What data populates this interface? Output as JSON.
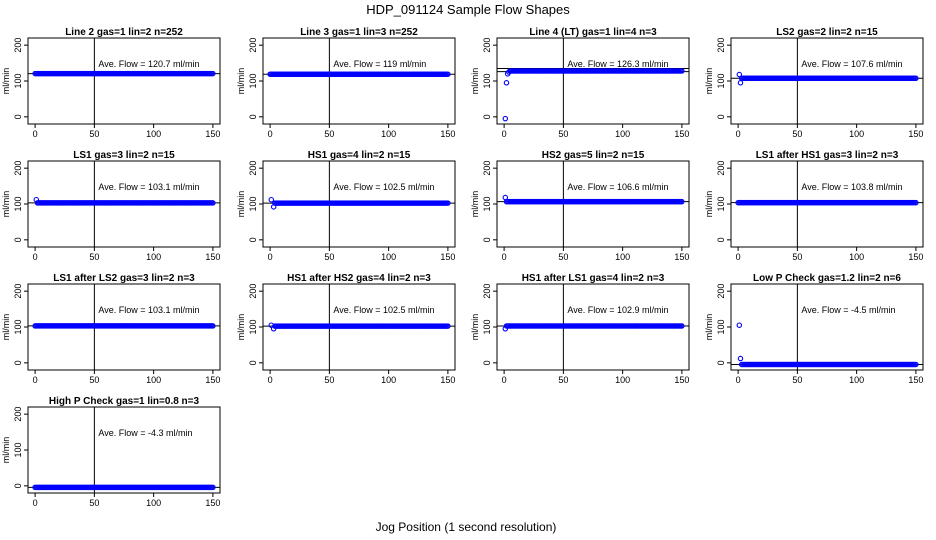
{
  "figure": {
    "title": "HDP_091124  Sample Flow Shapes",
    "xlabel": "Jog Position (1 second resolution)"
  },
  "colors": {
    "points": "#0000ff",
    "axes": "#000000"
  },
  "chart_data": [
    {
      "type": "scatter",
      "title": "Line 2 gas=1 lin=2 n=252",
      "ylabel": "ml/min",
      "xlim": [
        0,
        150
      ],
      "ylim": [
        -20,
        220
      ],
      "xticks": [
        "0",
        "50",
        "100",
        "150"
      ],
      "yticks": [
        "0",
        "100",
        "200"
      ],
      "vline": 50,
      "hline": 120.7,
      "annotation": "Ave. Flow =  120.7  ml/min",
      "start": [],
      "level": 120.7
    },
    {
      "type": "scatter",
      "title": "Line 3 gas=1 lin=3 n=252",
      "ylabel": "ml/min",
      "xlim": [
        0,
        150
      ],
      "ylim": [
        -20,
        220
      ],
      "xticks": [
        "0",
        "50",
        "100",
        "150"
      ],
      "yticks": [
        "0",
        "100",
        "200"
      ],
      "vline": 50,
      "hline": 119,
      "annotation": "Ave. Flow =  119  ml/min",
      "start": [],
      "level": 119
    },
    {
      "type": "scatter",
      "title": "Line 4 (LT) gas=1 lin=4 n=3",
      "ylabel": "ml/min",
      "xlim": [
        0,
        150
      ],
      "ylim": [
        -20,
        220
      ],
      "xticks": [
        "0",
        "50",
        "100",
        "150"
      ],
      "yticks": [
        "0",
        "100",
        "200"
      ],
      "vline": 50,
      "hline": 126.3,
      "hline2": 135,
      "annotation": "Ave. Flow =  126.3  ml/min",
      "start": [
        [
          1,
          -5
        ],
        [
          2,
          95
        ],
        [
          3,
          120
        ],
        [
          4,
          125
        ],
        [
          5,
          128
        ]
      ],
      "level": 128
    },
    {
      "type": "scatter",
      "title": "LS2 gas=2 lin=2 n=15",
      "ylabel": "ml/min",
      "xlim": [
        0,
        150
      ],
      "ylim": [
        -20,
        220
      ],
      "xticks": [
        "0",
        "50",
        "100",
        "150"
      ],
      "yticks": [
        "0",
        "100",
        "200"
      ],
      "vline": 50,
      "hline": 107.6,
      "annotation": "Ave. Flow =  107.6  ml/min",
      "start": [
        [
          1,
          118
        ],
        [
          2,
          95
        ]
      ],
      "level": 107.6
    },
    {
      "type": "scatter",
      "title": "LS1 gas=3 lin=2 n=15",
      "ylabel": "ml/min",
      "xlim": [
        0,
        150
      ],
      "ylim": [
        -20,
        220
      ],
      "xticks": [
        "0",
        "50",
        "100",
        "150"
      ],
      "yticks": [
        "0",
        "100",
        "200"
      ],
      "vline": 50,
      "hline": 103.1,
      "annotation": "Ave. Flow =  103.1  ml/min",
      "start": [
        [
          1,
          112
        ]
      ],
      "level": 103.1
    },
    {
      "type": "scatter",
      "title": "HS1 gas=4 lin=2 n=15",
      "ylabel": "ml/min",
      "xlim": [
        0,
        150
      ],
      "ylim": [
        -20,
        220
      ],
      "xticks": [
        "0",
        "50",
        "100",
        "150"
      ],
      "yticks": [
        "0",
        "100",
        "200"
      ],
      "vline": 50,
      "hline": 102.5,
      "annotation": "Ave. Flow =  102.5  ml/min",
      "start": [
        [
          1,
          112
        ],
        [
          3,
          92
        ]
      ],
      "level": 102.5
    },
    {
      "type": "scatter",
      "title": "HS2 gas=5 lin=2 n=15",
      "ylabel": "ml/min",
      "xlim": [
        0,
        150
      ],
      "ylim": [
        -20,
        220
      ],
      "xticks": [
        "0",
        "50",
        "100",
        "150"
      ],
      "yticks": [
        "0",
        "100",
        "200"
      ],
      "vline": 50,
      "hline": 106.6,
      "annotation": "Ave. Flow =  106.6  ml/min",
      "start": [
        [
          1,
          118
        ]
      ],
      "level": 106.6
    },
    {
      "type": "scatter",
      "title": "LS1 after HS1 gas=3 lin=2 n=3",
      "ylabel": "ml/min",
      "xlim": [
        0,
        150
      ],
      "ylim": [
        -20,
        220
      ],
      "xticks": [
        "0",
        "50",
        "100",
        "150"
      ],
      "yticks": [
        "0",
        "100",
        "200"
      ],
      "vline": 50,
      "hline": 103.8,
      "annotation": "Ave. Flow =  103.8  ml/min",
      "start": [],
      "level": 103.8
    },
    {
      "type": "scatter",
      "title": "LS1 after LS2 gas=3 lin=2 n=3",
      "ylabel": "ml/min",
      "xlim": [
        0,
        150
      ],
      "ylim": [
        -20,
        220
      ],
      "xticks": [
        "0",
        "50",
        "100",
        "150"
      ],
      "yticks": [
        "0",
        "100",
        "200"
      ],
      "vline": 50,
      "hline": 103.1,
      "annotation": "Ave. Flow =  103.1  ml/min",
      "start": [],
      "level": 103.1
    },
    {
      "type": "scatter",
      "title": "HS1 after HS2 gas=4 lin=2 n=3",
      "ylabel": "ml/min",
      "xlim": [
        0,
        150
      ],
      "ylim": [
        -20,
        220
      ],
      "xticks": [
        "0",
        "50",
        "100",
        "150"
      ],
      "yticks": [
        "0",
        "100",
        "200"
      ],
      "vline": 50,
      "hline": 102.5,
      "annotation": "Ave. Flow =  102.5  ml/min",
      "start": [
        [
          1,
          105
        ],
        [
          3,
          95
        ]
      ],
      "level": 102.5
    },
    {
      "type": "scatter",
      "title": "HS1 after LS1 gas=4 lin=2 n=3",
      "ylabel": "ml/min",
      "xlim": [
        0,
        150
      ],
      "ylim": [
        -20,
        220
      ],
      "xticks": [
        "0",
        "50",
        "100",
        "150"
      ],
      "yticks": [
        "0",
        "100",
        "200"
      ],
      "vline": 50,
      "hline": 102.9,
      "annotation": "Ave. Flow =  102.9  ml/min",
      "start": [
        [
          1,
          95
        ]
      ],
      "level": 102.9
    },
    {
      "type": "scatter",
      "title": "Low P Check gas=1.2 lin=2 n=6",
      "ylabel": "ml/min",
      "xlim": [
        0,
        150
      ],
      "ylim": [
        -20,
        220
      ],
      "xticks": [
        "0",
        "50",
        "100",
        "150"
      ],
      "yticks": [
        "0",
        "100",
        "200"
      ],
      "vline": 50,
      "hline": -4.5,
      "annotation": "Ave. Flow =  -4.5  ml/min",
      "start": [
        [
          1,
          105
        ],
        [
          2,
          12
        ]
      ],
      "level": -4.5
    },
    {
      "type": "scatter",
      "title": "High P Check gas=1 lin=0.8 n=3",
      "ylabel": "ml/min",
      "xlim": [
        0,
        150
      ],
      "ylim": [
        -20,
        220
      ],
      "xticks": [
        "0",
        "50",
        "100",
        "150"
      ],
      "yticks": [
        "0",
        "100",
        "200"
      ],
      "vline": 50,
      "hline": -4.3,
      "annotation": "Ave. Flow =  -4.3  ml/min",
      "start": [],
      "level": -4.3
    }
  ]
}
